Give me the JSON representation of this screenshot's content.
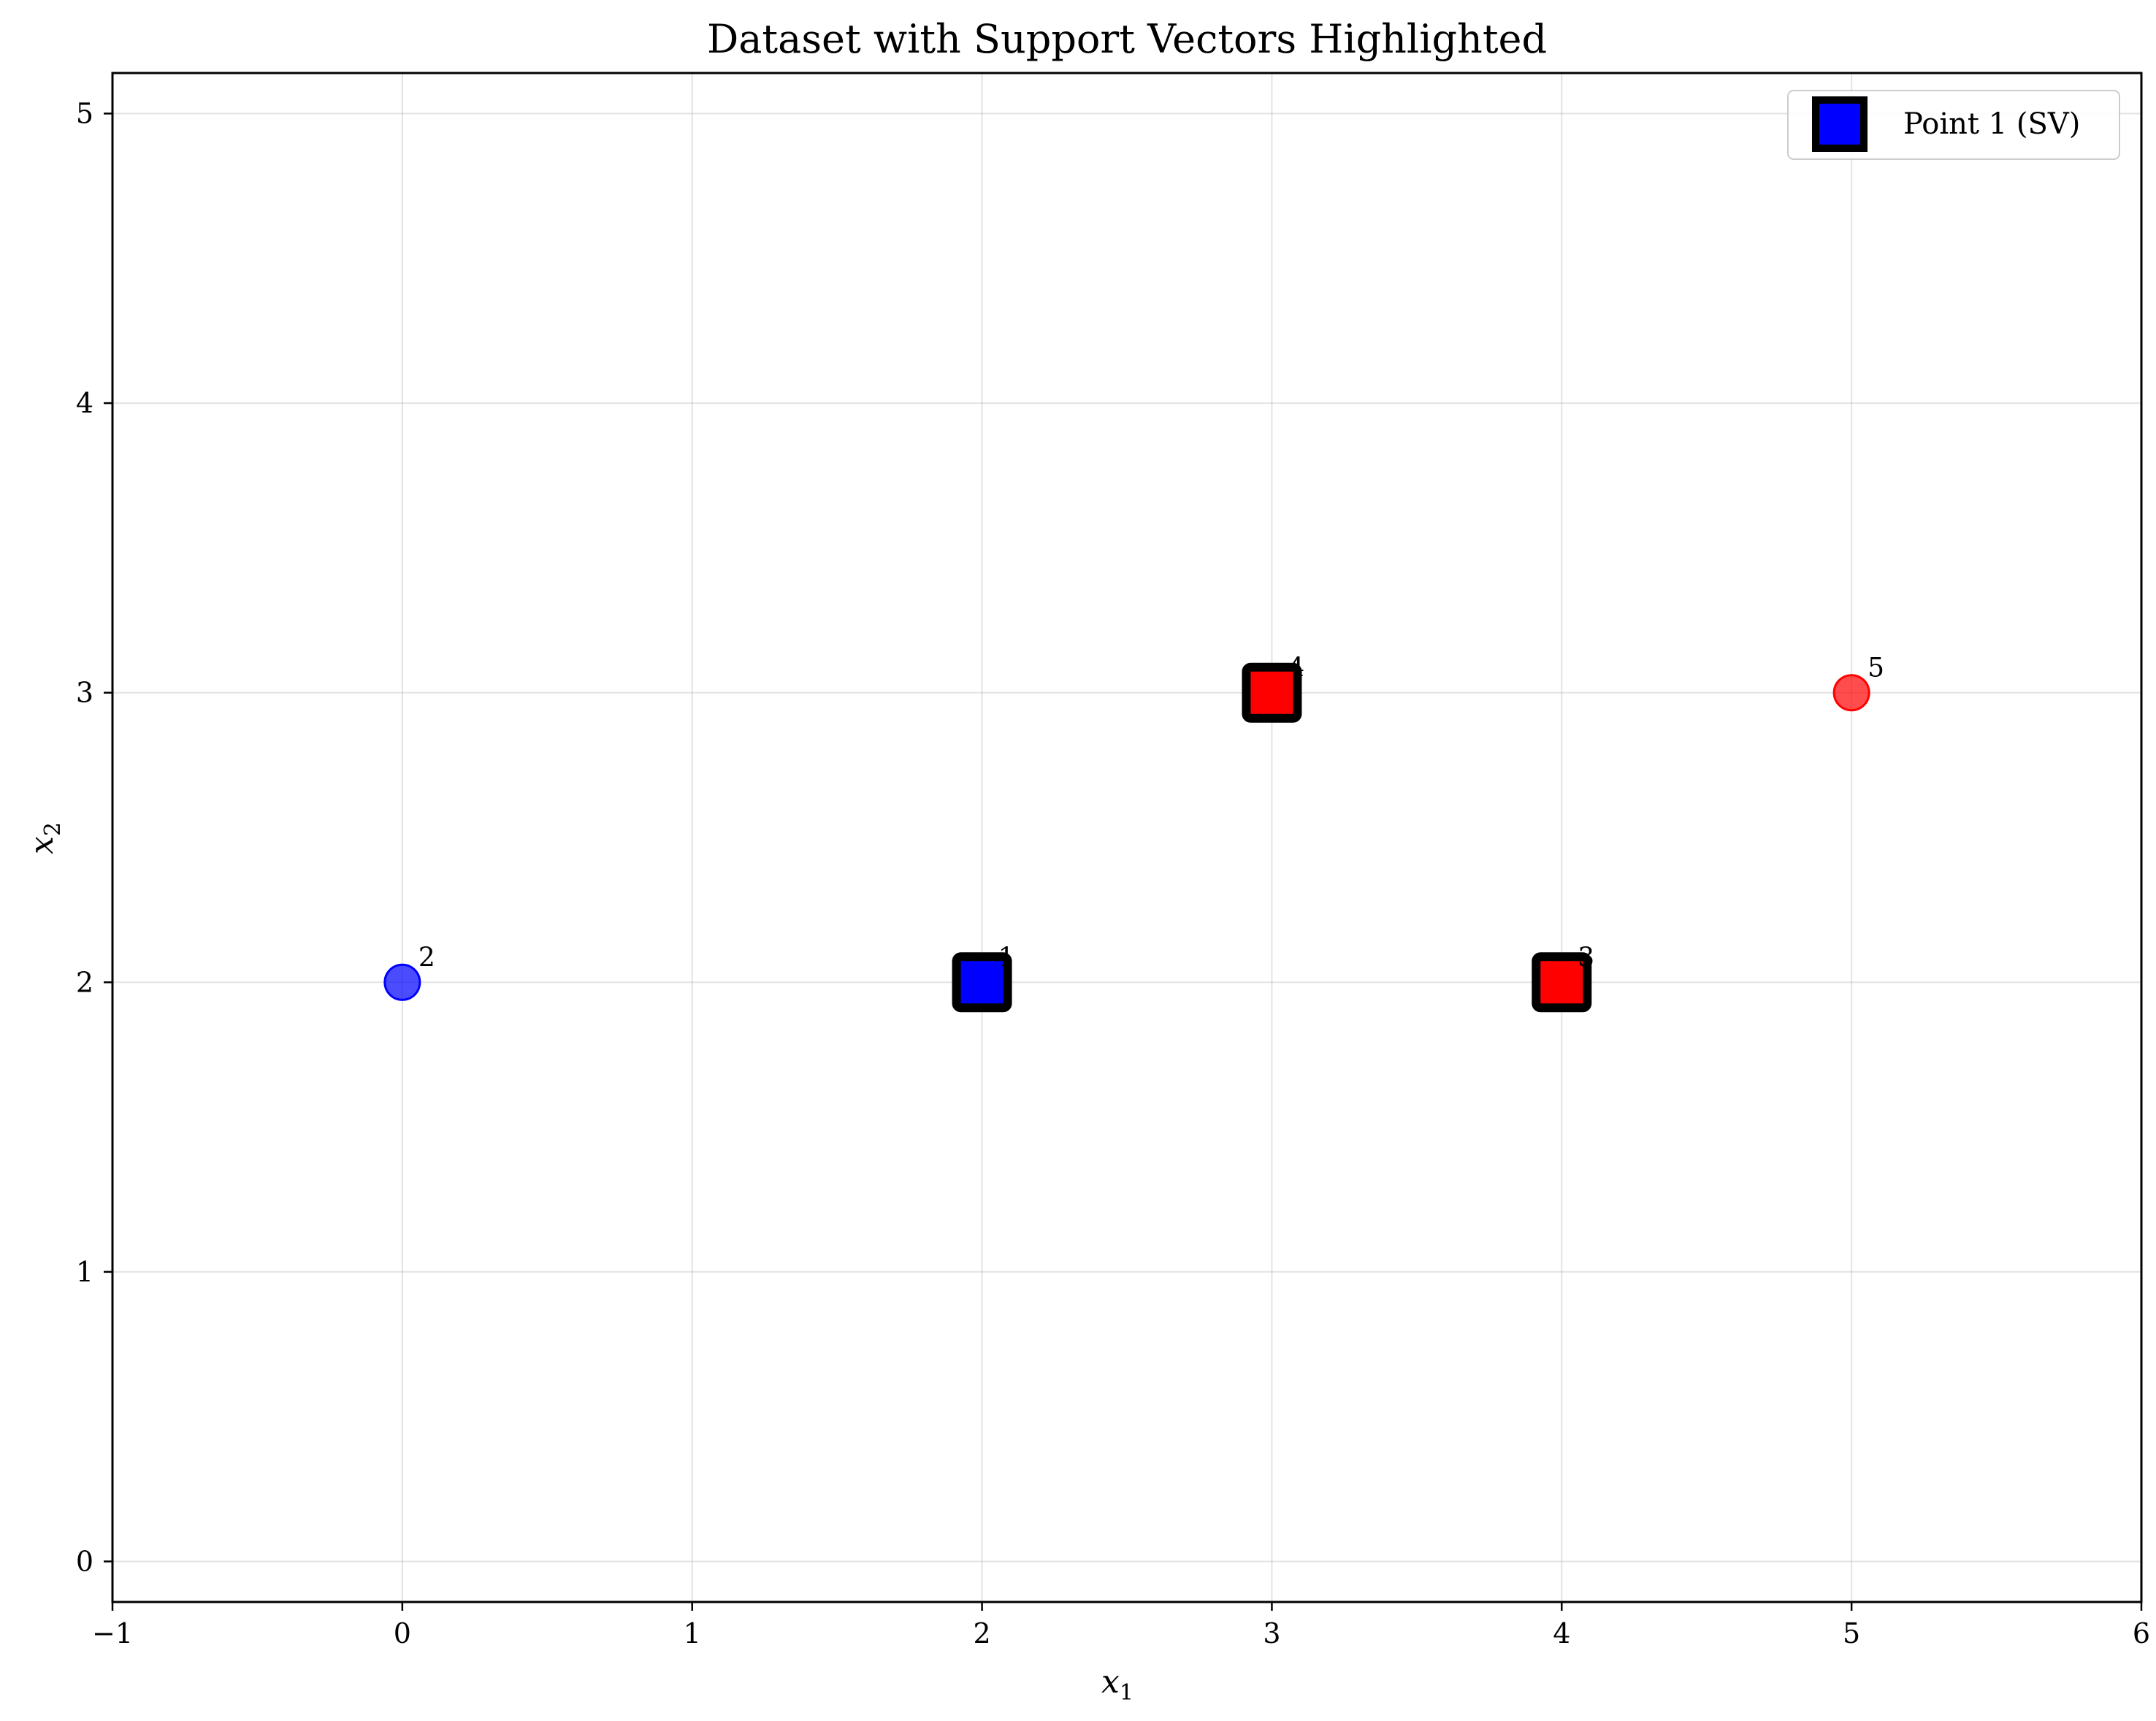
{
  "chart_data": {
    "type": "scatter",
    "title": "Dataset with Support Vectors Highlighted",
    "xlabel": "x",
    "xlabel_sub": "1",
    "ylabel": "x",
    "ylabel_sub": "2",
    "xlim": [
      -1,
      6
    ],
    "ylim": [
      -0.14,
      5.14
    ],
    "xticks": [
      -1,
      0,
      1,
      2,
      3,
      4,
      5,
      6
    ],
    "xtick_labels": [
      "−1",
      "0",
      "1",
      "2",
      "3",
      "4",
      "5",
      "6"
    ],
    "yticks": [
      0,
      1,
      2,
      3,
      4,
      5
    ],
    "ytick_labels": [
      "0",
      "1",
      "2",
      "3",
      "4",
      "5"
    ],
    "grid": true,
    "legend_position": "top-right",
    "legend": [
      {
        "label": "Point 1 (SV)",
        "marker": "square",
        "color": "#0000ff",
        "edge": "#000000"
      }
    ],
    "points": [
      {
        "id": "1",
        "x": 2,
        "y": 2,
        "class": "blue",
        "color": "#0000ff",
        "support_vector": true
      },
      {
        "id": "2",
        "x": 0,
        "y": 2,
        "class": "blue",
        "color": "#0000ff",
        "support_vector": false
      },
      {
        "id": "3",
        "x": 4,
        "y": 2,
        "class": "red",
        "color": "#ff0000",
        "support_vector": true
      },
      {
        "id": "4",
        "x": 3,
        "y": 3,
        "class": "red",
        "color": "#ff0000",
        "support_vector": true
      },
      {
        "id": "5",
        "x": 5,
        "y": 3,
        "class": "red",
        "color": "#ff0000",
        "support_vector": false
      }
    ]
  }
}
